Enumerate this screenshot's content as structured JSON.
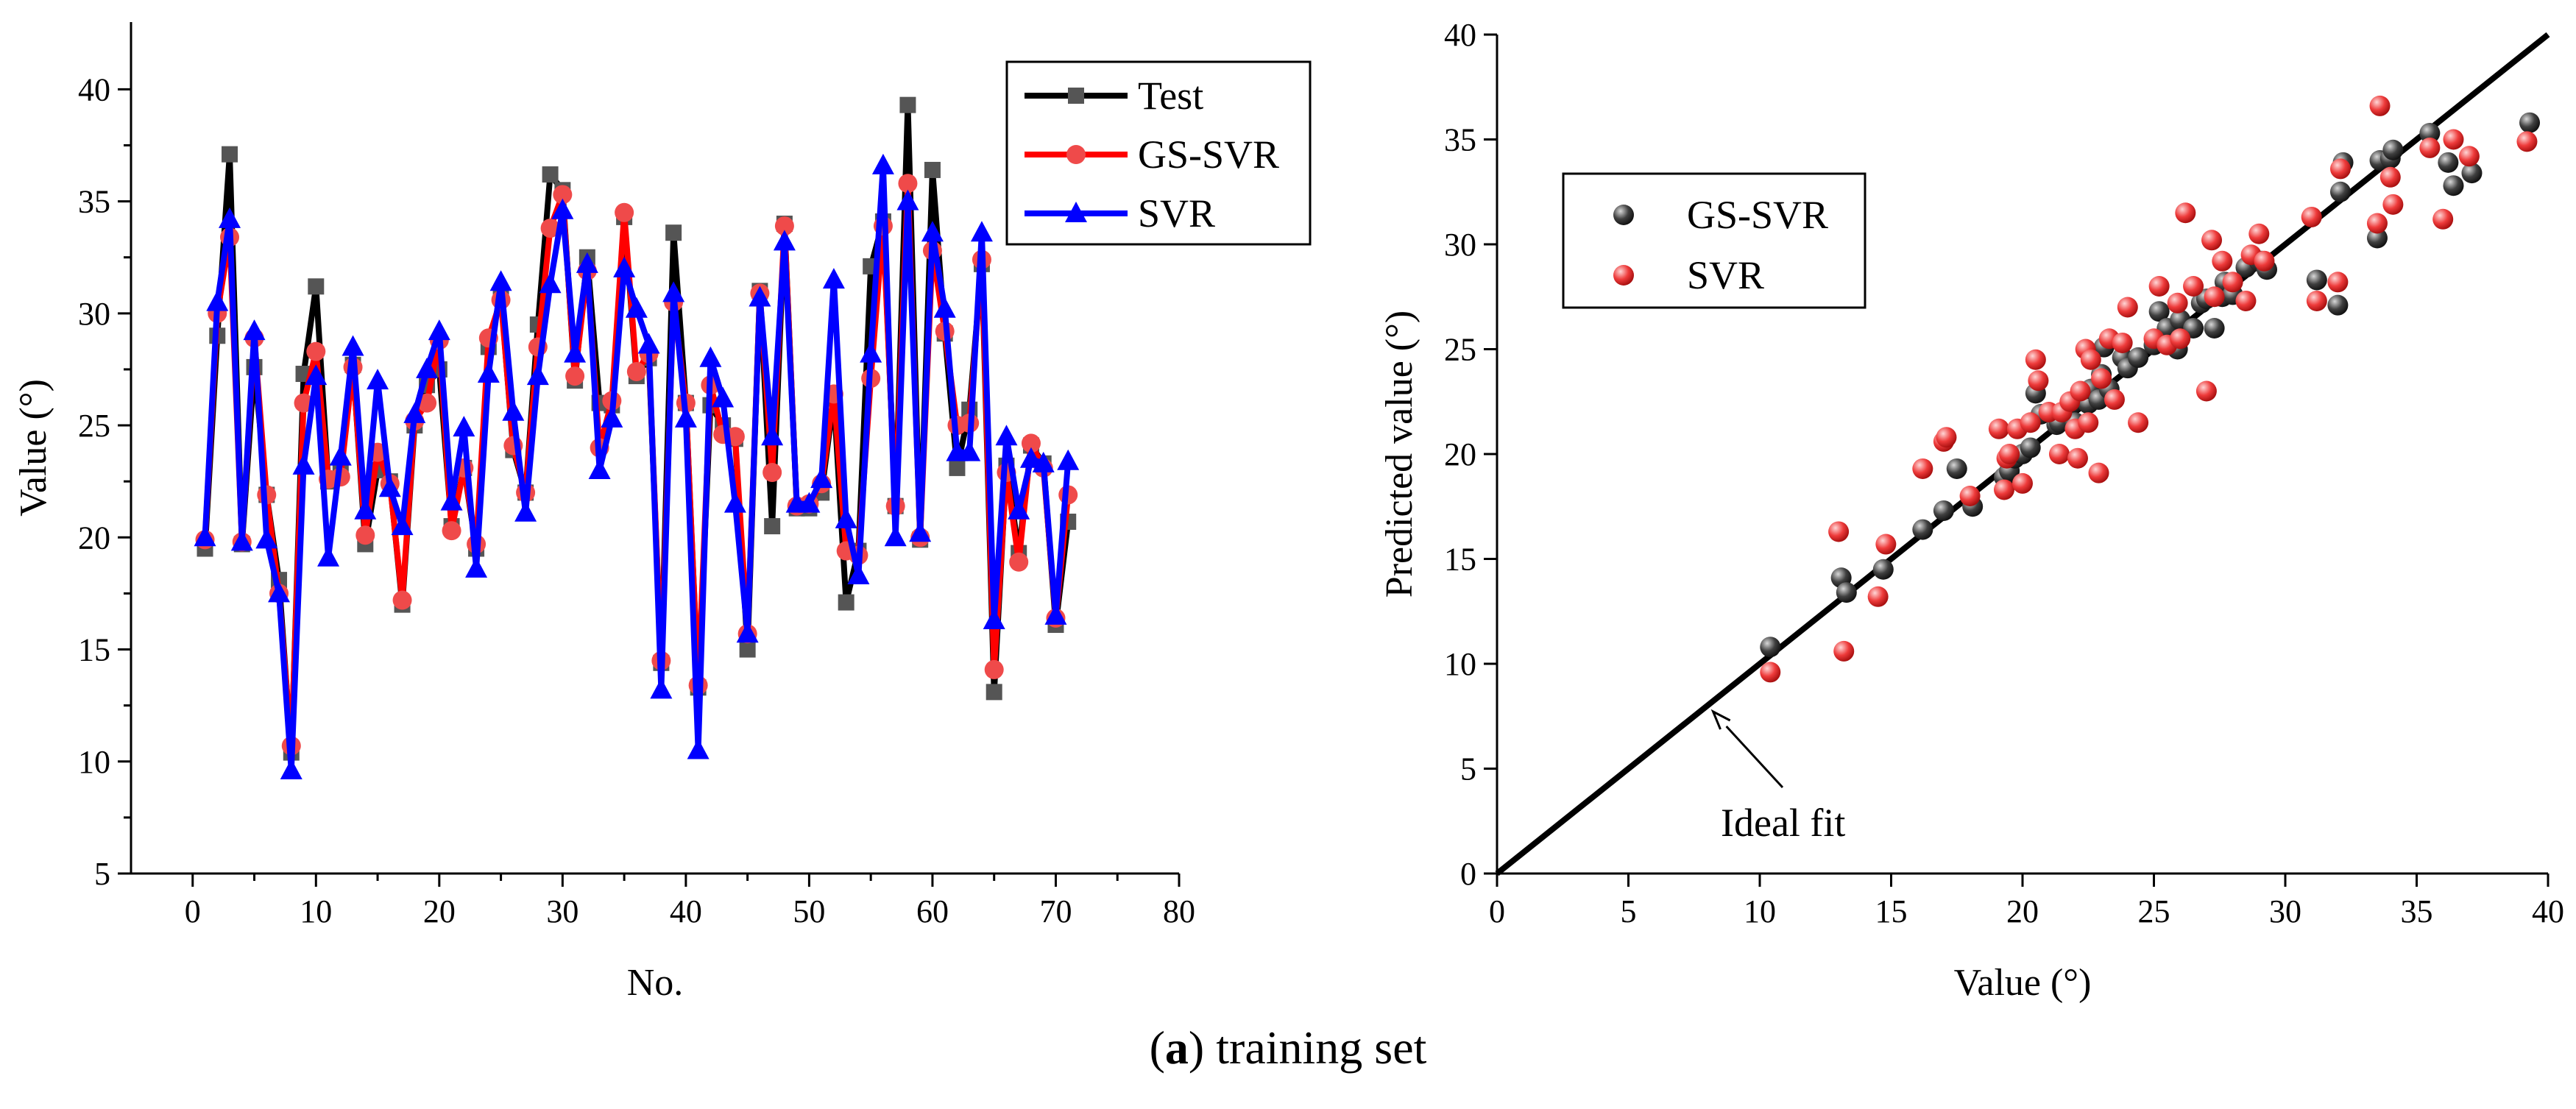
{
  "colors": {
    "test": "#000000",
    "test_marker": "#555555",
    "gs_svr": "#ff0000",
    "gs_svr_marker": "#ef4a4a",
    "svr": "#0000ff",
    "scatter_gs": "#404040",
    "scatter_svr": "#ee3b3b",
    "ideal_line": "#000000"
  },
  "caption": {
    "label": "a",
    "text": " training set"
  },
  "chart_data": [
    {
      "type": "line",
      "xlabel": "No.",
      "ylabel": "Value (°)",
      "xlim": [
        -5,
        80
      ],
      "ylim": [
        5,
        43
      ],
      "xticks": [
        0,
        10,
        20,
        30,
        40,
        50,
        60,
        70,
        80
      ],
      "yticks": [
        5,
        10,
        15,
        20,
        25,
        30,
        35,
        40
      ],
      "legend_position": "top-right",
      "x": [
        1,
        2,
        3,
        4,
        5,
        6,
        7,
        8,
        9,
        10,
        11,
        12,
        13,
        14,
        15,
        16,
        17,
        18,
        19,
        20,
        21,
        22,
        23,
        24,
        25,
        26,
        27,
        28,
        29,
        30,
        31,
        32,
        33,
        34,
        35,
        36,
        37,
        38,
        39,
        40,
        41,
        42,
        43,
        44,
        45,
        46,
        47,
        48,
        49,
        50,
        51,
        52,
        53,
        54,
        55,
        56,
        57,
        58,
        59,
        60,
        61,
        62,
        63,
        64,
        65,
        66,
        67,
        68,
        69,
        70,
        71
      ],
      "series": [
        {
          "name": "Test",
          "marker": "square",
          "values": [
            19.5,
            29.0,
            37.1,
            19.7,
            27.6,
            21.9,
            18.1,
            10.4,
            27.3,
            31.2,
            22.5,
            22.9,
            27.7,
            19.7,
            23.0,
            22.5,
            17.0,
            25.0,
            26.8,
            27.5,
            20.5,
            23.1,
            19.5,
            28.5,
            30.8,
            23.9,
            22.0,
            29.5,
            36.2,
            35.5,
            27.0,
            32.5,
            26.0,
            25.9,
            34.3,
            27.2,
            28.0,
            14.4,
            33.6,
            26.0,
            13.3,
            25.9,
            25.0,
            24.4,
            15.0,
            31.0,
            20.5,
            34.0,
            21.3,
            21.3,
            22.0,
            26.2,
            17.1,
            19.4,
            32.1,
            34.1,
            21.4,
            39.3,
            19.9,
            36.4,
            29.1,
            23.1,
            25.7,
            32.2,
            13.1,
            23.2,
            19.3,
            24.1,
            23.3,
            16.1,
            20.7
          ]
        },
        {
          "name": "GS-SVR",
          "marker": "circle",
          "values": [
            19.9,
            30.0,
            33.4,
            19.8,
            28.9,
            21.9,
            17.5,
            10.7,
            26.0,
            28.3,
            22.6,
            22.7,
            27.6,
            20.1,
            23.8,
            22.4,
            17.2,
            25.2,
            26.0,
            28.8,
            20.3,
            23.1,
            19.7,
            28.9,
            30.6,
            24.1,
            22.0,
            28.5,
            33.8,
            35.3,
            27.2,
            31.9,
            24.0,
            26.1,
            34.5,
            27.4,
            28.2,
            14.5,
            30.5,
            26.0,
            13.4,
            26.8,
            24.6,
            24.5,
            15.7,
            30.9,
            22.9,
            33.9,
            21.4,
            21.5,
            22.4,
            26.4,
            19.4,
            19.2,
            27.1,
            33.9,
            21.4,
            35.8,
            20.0,
            32.8,
            29.2,
            25.0,
            25.1,
            32.4,
            14.1,
            22.9,
            18.9,
            24.2,
            23.1,
            16.4,
            21.9
          ]
        },
        {
          "name": "SVR",
          "marker": "triangle",
          "values": [
            20.0,
            30.5,
            34.2,
            19.8,
            29.2,
            19.9,
            17.5,
            9.6,
            23.2,
            27.2,
            19.1,
            23.6,
            28.5,
            21.2,
            27.0,
            22.2,
            20.5,
            25.5,
            27.5,
            29.2,
            21.6,
            24.9,
            18.6,
            27.3,
            31.4,
            25.6,
            21.1,
            27.2,
            31.3,
            34.6,
            28.2,
            32.2,
            23.0,
            25.3,
            32.0,
            30.2,
            28.6,
            13.2,
            30.9,
            25.3,
            10.5,
            28.0,
            26.2,
            21.5,
            15.7,
            30.7,
            24.5,
            33.2,
            21.5,
            21.5,
            22.6,
            31.5,
            20.8,
            18.3,
            28.2,
            36.6,
            20.0,
            35.0,
            20.2,
            33.6,
            30.2,
            23.8,
            23.8,
            33.6,
            16.3,
            24.5,
            21.2,
            23.5,
            23.3,
            16.5,
            23.4
          ]
        }
      ]
    },
    {
      "type": "scatter",
      "xlabel": "Value (°)",
      "ylabel": "Predicted value (°)",
      "xlim": [
        0,
        40
      ],
      "ylim": [
        0,
        40
      ],
      "xticks": [
        0,
        5,
        10,
        15,
        20,
        25,
        30,
        35,
        40
      ],
      "yticks": [
        0,
        5,
        10,
        15,
        20,
        25,
        30,
        35,
        40
      ],
      "legend_position": "upper-left",
      "ideal_line": {
        "label": "Ideal fit",
        "from": [
          0,
          0
        ],
        "to": [
          40,
          40
        ],
        "annotation_points_to": [
          8,
          8
        ]
      },
      "series": [
        {
          "name": "GS-SVR",
          "x": [
            10.4,
            13.1,
            13.3,
            14.7,
            16.2,
            17.0,
            17.5,
            18.1,
            19.3,
            19.5,
            19.7,
            20.0,
            20.3,
            20.5,
            20.7,
            21.3,
            21.4,
            21.9,
            22.0,
            22.3,
            22.5,
            22.6,
            22.9,
            23.0,
            23.1,
            23.3,
            23.8,
            24.0,
            24.4,
            25.0,
            25.2,
            25.5,
            25.9,
            26.0,
            26.5,
            26.8,
            27.0,
            27.3,
            27.6,
            27.7,
            28.0,
            28.5,
            29.0,
            29.1,
            29.3,
            31.2,
            32.0,
            32.1,
            32.2,
            33.5,
            33.6,
            34.0,
            34.1,
            35.5,
            36.2,
            36.4,
            37.1,
            39.3
          ],
          "y": [
            10.8,
            14.1,
            13.4,
            14.5,
            16.4,
            17.3,
            19.3,
            17.5,
            18.9,
            19.2,
            19.8,
            20.0,
            20.3,
            22.9,
            21.9,
            21.4,
            21.5,
            22.4,
            21.5,
            22.7,
            22.4,
            23.1,
            22.6,
            23.8,
            25.1,
            23.1,
            24.6,
            24.1,
            24.6,
            25.2,
            26.8,
            26.0,
            25.0,
            26.4,
            26.0,
            27.2,
            27.4,
            26.0,
            27.5,
            28.2,
            27.6,
            28.9,
            29.2,
            29.2,
            28.8,
            28.3,
            27.1,
            32.5,
            33.9,
            30.3,
            34.0,
            34.1,
            34.5,
            35.3,
            33.9,
            32.8,
            33.4,
            35.8
          ]
        },
        {
          "name": "SVR",
          "x": [
            10.4,
            13.0,
            13.2,
            14.5,
            14.8,
            16.2,
            17.0,
            17.1,
            18.0,
            19.1,
            19.3,
            19.4,
            19.5,
            19.8,
            20.0,
            20.3,
            20.5,
            20.6,
            21.0,
            21.4,
            21.5,
            21.8,
            22.0,
            22.1,
            22.2,
            22.4,
            22.5,
            22.6,
            22.9,
            23.0,
            23.3,
            23.5,
            23.8,
            24.0,
            24.4,
            25.0,
            25.2,
            25.5,
            25.9,
            26.0,
            26.2,
            26.5,
            27.0,
            27.2,
            27.3,
            27.6,
            28.0,
            28.5,
            28.7,
            29.0,
            29.2,
            31.0,
            31.2,
            32.0,
            32.1,
            33.5,
            33.6,
            34.0,
            34.1,
            35.5,
            36.0,
            36.4,
            37.0,
            39.2
          ],
          "y": [
            9.6,
            16.3,
            10.6,
            13.2,
            15.7,
            19.3,
            20.6,
            20.8,
            18.0,
            21.2,
            18.3,
            19.8,
            20.0,
            21.2,
            18.6,
            21.5,
            24.5,
            23.5,
            22.0,
            20.0,
            22.0,
            22.5,
            21.2,
            19.8,
            23.0,
            25.0,
            21.5,
            24.5,
            19.1,
            23.6,
            25.5,
            22.6,
            25.3,
            27.0,
            21.5,
            25.5,
            28.0,
            25.2,
            27.2,
            25.5,
            31.5,
            28.0,
            23.0,
            30.2,
            27.5,
            29.2,
            28.2,
            27.3,
            29.5,
            30.5,
            29.2,
            31.3,
            27.3,
            28.2,
            33.6,
            31.0,
            36.6,
            33.2,
            31.9,
            34.6,
            31.2,
            35.0,
            34.2,
            34.9
          ]
        }
      ]
    }
  ]
}
